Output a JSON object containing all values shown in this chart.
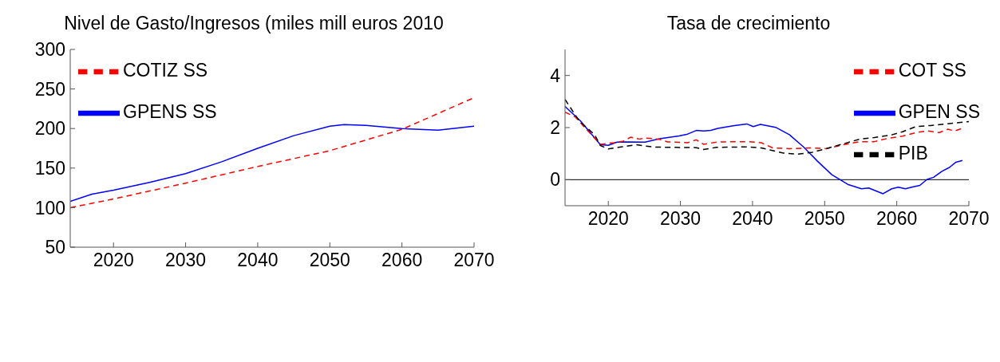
{
  "chart_data": [
    {
      "type": "line",
      "title": "Nivel de Gasto/Ingresos (miles mill euros 2010",
      "xlim": [
        2014,
        2070
      ],
      "xticks": [
        2020,
        2030,
        2040,
        2050,
        2060,
        2070
      ],
      "ylim": [
        50,
        300
      ],
      "yticks": [
        50,
        100,
        150,
        200,
        250,
        300
      ],
      "legend": "top left",
      "grid": false,
      "series": [
        {
          "name": "GPENS SS",
          "color": "#0000ff",
          "line_style": "solid",
          "x": [
            2014,
            2017,
            2020,
            2025,
            2030,
            2035,
            2040,
            2045,
            2050,
            2052,
            2055,
            2060,
            2065,
            2070
          ],
          "values": [
            108,
            117,
            122,
            132,
            143,
            158,
            175,
            191,
            203,
            205,
            204,
            200,
            198,
            203
          ]
        },
        {
          "name": "COTIZ SS",
          "color": "#ff0000",
          "line_style": "dashed",
          "x": [
            2014,
            2020,
            2030,
            2040,
            2050,
            2060,
            2070
          ],
          "values": [
            100,
            111,
            131,
            152,
            172,
            199,
            239
          ]
        }
      ]
    },
    {
      "type": "line",
      "title": "Tasa de crecimiento",
      "xlim": [
        2014,
        2070
      ],
      "xticks": [
        2020,
        2030,
        2040,
        2050,
        2060,
        2070
      ],
      "ylim": [
        -1,
        5
      ],
      "yticks": [
        0,
        2,
        4
      ],
      "legend": "top right",
      "grid": false,
      "ref_lines": [
        {
          "axis": "y",
          "value": 0,
          "color": "#000000"
        }
      ],
      "series": [
        {
          "name": "GPEN SS",
          "color": "#0000ff",
          "line_style": "solid",
          "x": [
            2014,
            2016.1,
            2018.9,
            2020,
            2021.2,
            2022.4,
            2025.1,
            2027.1,
            2029.8,
            2031,
            2032.2,
            2033.2,
            2034.2,
            2035.2,
            2037.3,
            2039.2,
            2040.1,
            2041.1,
            2043.2,
            2045.1,
            2047.1,
            2049,
            2051,
            2053.2,
            2055.1,
            2056.1,
            2058.1,
            2059.3,
            2060.2,
            2061.2,
            2062.2,
            2063.2,
            2064.2,
            2065.1,
            2066.3,
            2067.3,
            2068.2,
            2069.1
          ],
          "values": [
            2.81,
            2.27,
            1.34,
            1.32,
            1.44,
            1.45,
            1.44,
            1.57,
            1.68,
            1.75,
            1.89,
            1.87,
            1.89,
            1.97,
            2.07,
            2.14,
            2.04,
            2.12,
            2.01,
            1.73,
            1.25,
            0.71,
            0.19,
            -0.18,
            -0.35,
            -0.32,
            -0.54,
            -0.35,
            -0.29,
            -0.35,
            -0.28,
            -0.22,
            0.01,
            0.09,
            0.33,
            0.47,
            0.67,
            0.74
          ]
        },
        {
          "name": "COT SS",
          "color": "#ff0000",
          "line_style": "dashed",
          "x": [
            2014,
            2015.4,
            2016.9,
            2018.9,
            2020.8,
            2022,
            2023.1,
            2024.3,
            2025.1,
            2027.1,
            2028.2,
            2031,
            2032.2,
            2033.2,
            2035.2,
            2039.3,
            2041.2,
            2042.8,
            2045.1,
            2048.3,
            2050.2,
            2052.9,
            2054.9,
            2056.9,
            2058.8,
            2060.8,
            2062.7,
            2064.3,
            2065.9,
            2067.1,
            2068,
            2069.1
          ],
          "values": [
            2.59,
            2.41,
            1.95,
            1.36,
            1.42,
            1.47,
            1.63,
            1.56,
            1.6,
            1.55,
            1.45,
            1.42,
            1.53,
            1.36,
            1.45,
            1.46,
            1.42,
            1.22,
            1.19,
            1.22,
            1.19,
            1.36,
            1.46,
            1.46,
            1.59,
            1.67,
            1.81,
            1.87,
            1.81,
            1.94,
            1.87,
            1.97
          ]
        },
        {
          "name": "PIB",
          "color": "#000000",
          "line_style": "dashed",
          "x": [
            2014,
            2016,
            2018.1,
            2018.9,
            2020,
            2021.6,
            2023.9,
            2026.3,
            2032.2,
            2033.2,
            2035,
            2039.3,
            2041.2,
            2044.3,
            2046.3,
            2048.3,
            2050.6,
            2052.9,
            2054.9,
            2056.9,
            2059.3,
            2060.8,
            2062.7,
            2064.7,
            2067.8,
            2070
          ],
          "values": [
            3.08,
            2.24,
            1.73,
            1.31,
            1.18,
            1.25,
            1.34,
            1.25,
            1.23,
            1.16,
            1.24,
            1.26,
            1.22,
            1.02,
            0.98,
            1.05,
            1.22,
            1.4,
            1.56,
            1.62,
            1.72,
            1.84,
            2.04,
            2.08,
            2.17,
            2.23
          ]
        }
      ]
    }
  ]
}
